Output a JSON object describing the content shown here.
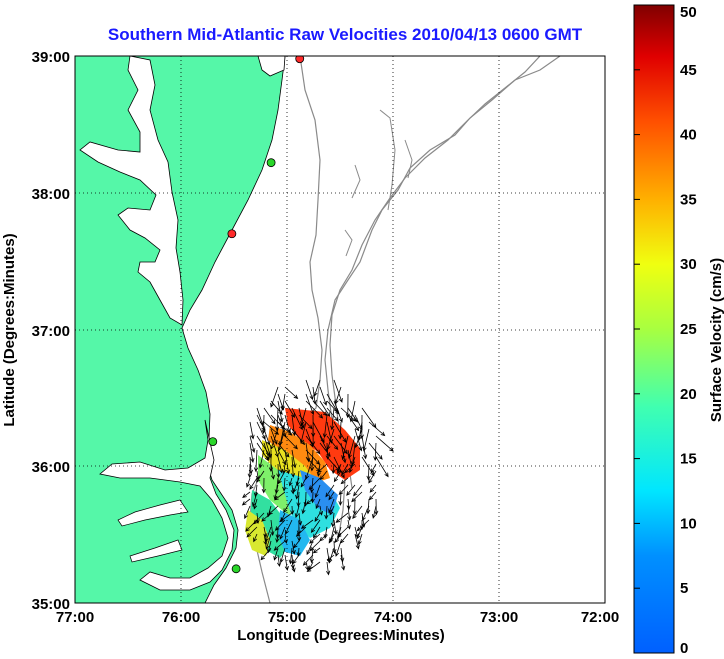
{
  "chart_data": {
    "type": "map",
    "title": "Southern Mid-Atlantic Raw Velocities 2010/04/13 0600 GMT",
    "xlabel": "Longitude (Degrees:Minutes)",
    "ylabel": "Latitude (Degrees:Minutes)",
    "x_range": [
      -77,
      -72
    ],
    "y_range": [
      35,
      39
    ],
    "x_ticks": [
      "77:00",
      "76:00",
      "75:00",
      "74:00",
      "73:00",
      "72:00"
    ],
    "y_ticks": [
      "35:00",
      "36:00",
      "37:00",
      "38:00",
      "39:00"
    ],
    "grid": true,
    "colorbar": {
      "label": "Surface Velocity (cm/s)",
      "range": [
        0,
        50
      ],
      "ticks": [
        "0",
        "5",
        "10",
        "15",
        "20",
        "25",
        "30",
        "35",
        "40",
        "45",
        "50"
      ]
    },
    "stations": [
      {
        "lon": -74.88,
        "lat": 38.98,
        "color": "#ff2a2a"
      },
      {
        "lon": -75.15,
        "lat": 38.22,
        "color": "#2ad62a"
      },
      {
        "lon": -75.52,
        "lat": 37.7,
        "color": "#ff2a2a"
      },
      {
        "lon": -75.7,
        "lat": 36.18,
        "color": "#2ad62a"
      },
      {
        "lon": -75.48,
        "lat": 35.25,
        "color": "#2ad62a"
      }
    ],
    "land_color": "#55f7a8",
    "water_color": "#ffffff"
  }
}
